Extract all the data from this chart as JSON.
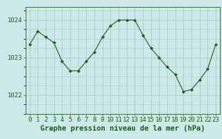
{
  "x": [
    0,
    1,
    2,
    3,
    4,
    5,
    6,
    7,
    8,
    9,
    10,
    11,
    12,
    13,
    14,
    15,
    16,
    17,
    18,
    19,
    20,
    21,
    22,
    23
  ],
  "y": [
    1023.35,
    1023.7,
    1023.55,
    1023.4,
    1022.9,
    1022.65,
    1022.65,
    1022.9,
    1023.15,
    1023.55,
    1023.85,
    1024.0,
    1024.0,
    1024.0,
    1023.6,
    1023.25,
    1023.0,
    1022.75,
    1022.55,
    1022.1,
    1022.15,
    1022.4,
    1022.7,
    1023.35
  ],
  "line_color": "#1a5e1a",
  "marker": "D",
  "marker_size": 2.2,
  "bg_color": "#cce8e8",
  "grid_color": "#aacccc",
  "text_color": "#1a5e1a",
  "xlabel": "Graphe pression niveau de la mer (hPa)",
  "yticks": [
    1022,
    1023,
    1024
  ],
  "ylim": [
    1021.5,
    1024.35
  ],
  "xlim": [
    -0.5,
    23.5
  ],
  "xtick_labels": [
    "0",
    "1",
    "2",
    "3",
    "4",
    "5",
    "6",
    "7",
    "8",
    "9",
    "10",
    "11",
    "12",
    "13",
    "14",
    "15",
    "16",
    "17",
    "18",
    "19",
    "20",
    "21",
    "22",
    "23"
  ],
  "xlabel_fontsize": 7.5,
  "tick_fontsize": 6.5
}
